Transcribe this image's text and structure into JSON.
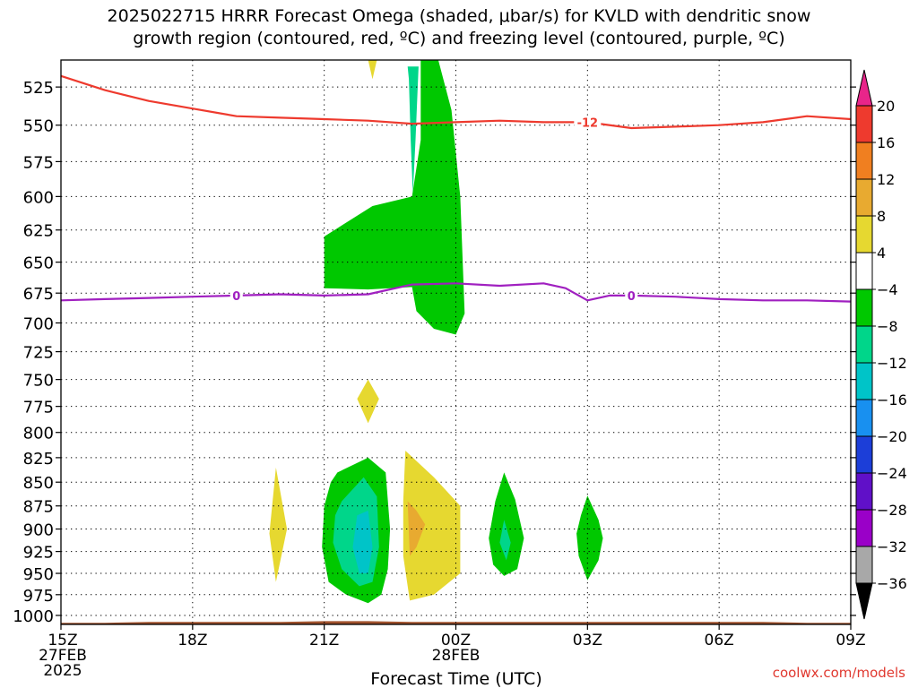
{
  "title_line1": "2025022715 HRRR Forecast Omega (shaded, μbar/s) for KVLD with dendritic snow",
  "title_line2": "growth region (contoured, red, ºC) and freezing level (contoured, purple, ºC)",
  "credit": "coolwx.com/models",
  "colors": {
    "temp_contour": "#ee3a2e",
    "freezing_contour": "#a020c0",
    "terrain": "#a0522d",
    "grid": "#000000"
  },
  "chart_data": {
    "type": "heatmap",
    "xlabel": "Forecast Time (UTC)",
    "ylabel": "",
    "x_ticks": [
      {
        "hour": 15,
        "lines": [
          "15Z",
          "27FEB",
          "2025"
        ]
      },
      {
        "hour": 18,
        "lines": [
          "18Z"
        ]
      },
      {
        "hour": 21,
        "lines": [
          "21Z"
        ]
      },
      {
        "hour": 24,
        "lines": [
          "00Z",
          "28FEB"
        ]
      },
      {
        "hour": 27,
        "lines": [
          "03Z"
        ]
      },
      {
        "hour": 30,
        "lines": [
          "06Z"
        ]
      },
      {
        "hour": 33,
        "lines": [
          "09Z"
        ]
      }
    ],
    "xlim_hours": [
      15,
      33
    ],
    "y_ticks": [
      525,
      550,
      575,
      600,
      625,
      650,
      675,
      700,
      725,
      750,
      775,
      800,
      825,
      850,
      875,
      900,
      925,
      950,
      975,
      1000
    ],
    "ylim": [
      508,
      1011
    ],
    "y_scale": "log-pressure",
    "grid": true,
    "colorbar": {
      "labels": [
        "20",
        "16",
        "12",
        "8",
        "4",
        "−4",
        "−8",
        "−12",
        "−16",
        "−20",
        "−24",
        "−28",
        "−32",
        "−36"
      ],
      "bins": [
        {
          "range": "> 20",
          "color": "#e8258a"
        },
        {
          "range": "16 to 20",
          "color": "#ee3a2e"
        },
        {
          "range": "12 to 16",
          "color": "#f07f20"
        },
        {
          "range": "8 to 12",
          "color": "#e8aa30"
        },
        {
          "range": "4 to 8",
          "color": "#e6d830"
        },
        {
          "range": "−4 to 4",
          "color": "#ffffff"
        },
        {
          "range": "−8 to −4",
          "color": "#00c800"
        },
        {
          "range": "−12 to −8",
          "color": "#00d68a"
        },
        {
          "range": "−16 to −12",
          "color": "#00c4c8"
        },
        {
          "range": "−20 to −16",
          "color": "#1890f0"
        },
        {
          "range": "−24 to −20",
          "color": "#1c3ed8"
        },
        {
          "range": "−28 to −24",
          "color": "#6010c8"
        },
        {
          "range": "−32 to −28",
          "color": "#9a00c8"
        },
        {
          "range": "−36 to −32",
          "color": "#a8a8a8"
        },
        {
          "range": "< −36",
          "color": "#000000"
        }
      ]
    },
    "contours": [
      {
        "label": "-12",
        "color": "#ee3a2e",
        "label_points": [
          {
            "hour": 27.0,
            "p": 548
          }
        ],
        "points": [
          [
            15.0,
            518
          ],
          [
            16.0,
            527
          ],
          [
            17.0,
            534
          ],
          [
            18.0,
            539
          ],
          [
            19.0,
            544
          ],
          [
            20.0,
            545
          ],
          [
            21.0,
            546
          ],
          [
            22.0,
            547
          ],
          [
            23.0,
            549
          ],
          [
            24.0,
            548
          ],
          [
            25.0,
            547
          ],
          [
            26.0,
            548
          ],
          [
            27.0,
            548
          ],
          [
            28.0,
            552
          ],
          [
            29.0,
            551
          ],
          [
            30.0,
            550
          ],
          [
            31.0,
            548
          ],
          [
            32.0,
            544
          ],
          [
            33.0,
            546
          ]
        ]
      },
      {
        "label": "0",
        "color": "#a020c0",
        "label_points": [
          {
            "hour": 19.0,
            "p": 677
          },
          {
            "hour": 28.0,
            "p": 677
          }
        ],
        "points": [
          [
            15.0,
            681
          ],
          [
            16.0,
            680
          ],
          [
            17.0,
            679
          ],
          [
            18.0,
            678
          ],
          [
            19.0,
            677
          ],
          [
            20.0,
            676
          ],
          [
            21.0,
            677
          ],
          [
            22.0,
            676
          ],
          [
            23.0,
            668
          ],
          [
            24.0,
            667
          ],
          [
            25.0,
            669
          ],
          [
            26.0,
            667
          ],
          [
            26.5,
            671
          ],
          [
            27.0,
            681
          ],
          [
            27.5,
            677
          ],
          [
            28.0,
            677
          ],
          [
            29.0,
            678
          ],
          [
            30.0,
            680
          ],
          [
            31.0,
            681
          ],
          [
            32.0,
            681
          ],
          [
            33.0,
            682
          ]
        ]
      }
    ],
    "omega_regions": [
      {
        "bin": "−8 to −4",
        "points": [
          [
            22.6,
            508
          ],
          [
            23.2,
            508
          ],
          [
            23.2,
            560
          ],
          [
            23.0,
            600
          ],
          [
            22.1,
            607
          ],
          [
            21.0,
            630
          ],
          [
            21.0,
            671
          ],
          [
            22.0,
            672
          ],
          [
            23.0,
            670
          ],
          [
            23.1,
            690
          ],
          [
            23.5,
            705
          ],
          [
            24.0,
            710
          ],
          [
            24.2,
            692
          ],
          [
            24.1,
            600
          ],
          [
            23.9,
            540
          ],
          [
            23.6,
            508
          ]
        ]
      },
      {
        "bin": "−12 to −8",
        "points": [
          [
            22.9,
            512
          ],
          [
            23.15,
            512
          ],
          [
            23.08,
            560
          ],
          [
            23.02,
            598
          ],
          [
            22.97,
            560
          ],
          [
            22.93,
            520
          ]
        ]
      },
      {
        "bin": "−8 to −4",
        "points": [
          [
            21.3,
            840
          ],
          [
            22.0,
            825
          ],
          [
            22.4,
            840
          ],
          [
            22.5,
            900
          ],
          [
            22.45,
            945
          ],
          [
            22.3,
            975
          ],
          [
            22.0,
            985
          ],
          [
            21.5,
            975
          ],
          [
            21.1,
            960
          ],
          [
            20.95,
            920
          ],
          [
            21.0,
            875
          ],
          [
            21.15,
            850
          ]
        ]
      },
      {
        "bin": "−12 to −8",
        "points": [
          [
            21.4,
            870
          ],
          [
            21.9,
            845
          ],
          [
            22.2,
            865
          ],
          [
            22.25,
            920
          ],
          [
            22.1,
            960
          ],
          [
            21.8,
            965
          ],
          [
            21.4,
            945
          ],
          [
            21.2,
            915
          ],
          [
            21.25,
            885
          ]
        ]
      },
      {
        "bin": "−16 to −12",
        "points": [
          [
            21.75,
            885
          ],
          [
            22.0,
            880
          ],
          [
            22.1,
            920
          ],
          [
            22.0,
            950
          ],
          [
            21.8,
            950
          ],
          [
            21.65,
            920
          ]
        ]
      },
      {
        "bin": "4 to 8",
        "points": [
          [
            22.85,
            818
          ],
          [
            23.5,
            845
          ],
          [
            24.1,
            875
          ],
          [
            24.1,
            950
          ],
          [
            23.5,
            975
          ],
          [
            22.95,
            982
          ],
          [
            22.8,
            930
          ],
          [
            22.8,
            870
          ]
        ]
      },
      {
        "bin": "8 to 12",
        "points": [
          [
            22.9,
            870
          ],
          [
            23.1,
            880
          ],
          [
            23.3,
            895
          ],
          [
            23.1,
            920
          ],
          [
            22.95,
            930
          ]
        ]
      },
      {
        "bin": "−8 to −4",
        "points": [
          [
            25.1,
            840
          ],
          [
            25.35,
            868
          ],
          [
            25.55,
            910
          ],
          [
            25.4,
            945
          ],
          [
            25.1,
            953
          ],
          [
            24.85,
            940
          ],
          [
            24.75,
            910
          ],
          [
            24.9,
            870
          ]
        ]
      },
      {
        "bin": "−12 to −8",
        "points": [
          [
            25.1,
            890
          ],
          [
            25.25,
            915
          ],
          [
            25.15,
            935
          ],
          [
            25.0,
            915
          ]
        ]
      },
      {
        "bin": "−8 to −4",
        "points": [
          [
            27.0,
            864
          ],
          [
            27.25,
            890
          ],
          [
            27.35,
            910
          ],
          [
            27.25,
            935
          ],
          [
            27.0,
            958
          ],
          [
            26.8,
            930
          ],
          [
            26.75,
            905
          ],
          [
            26.85,
            885
          ]
        ]
      },
      {
        "bin": "4 to 8",
        "points": [
          [
            22.0,
            750
          ],
          [
            22.25,
            768
          ],
          [
            22.0,
            791
          ],
          [
            21.75,
            768
          ]
        ]
      },
      {
        "bin": "4 to 8",
        "points": [
          [
            19.9,
            835
          ],
          [
            20.15,
            900
          ],
          [
            19.9,
            960
          ],
          [
            19.75,
            905
          ]
        ]
      },
      {
        "bin": "4 to 8",
        "points": [
          [
            22.0,
            508
          ],
          [
            22.2,
            508
          ],
          [
            22.1,
            520
          ]
        ]
      }
    ],
    "terrain_top": [
      [
        15.0,
        1009
      ],
      [
        16.0,
        1009
      ],
      [
        17.0,
        1008
      ],
      [
        18.0,
        1008
      ],
      [
        19.0,
        1008
      ],
      [
        20.0,
        1008
      ],
      [
        21.0,
        1007
      ],
      [
        22.0,
        1007
      ],
      [
        23.0,
        1008
      ],
      [
        24.0,
        1008
      ],
      [
        25.0,
        1008
      ],
      [
        26.0,
        1008
      ],
      [
        27.0,
        1008
      ],
      [
        28.0,
        1008
      ],
      [
        29.0,
        1008
      ],
      [
        30.0,
        1008
      ],
      [
        31.0,
        1008
      ],
      [
        32.0,
        1009
      ],
      [
        33.0,
        1009
      ]
    ]
  }
}
